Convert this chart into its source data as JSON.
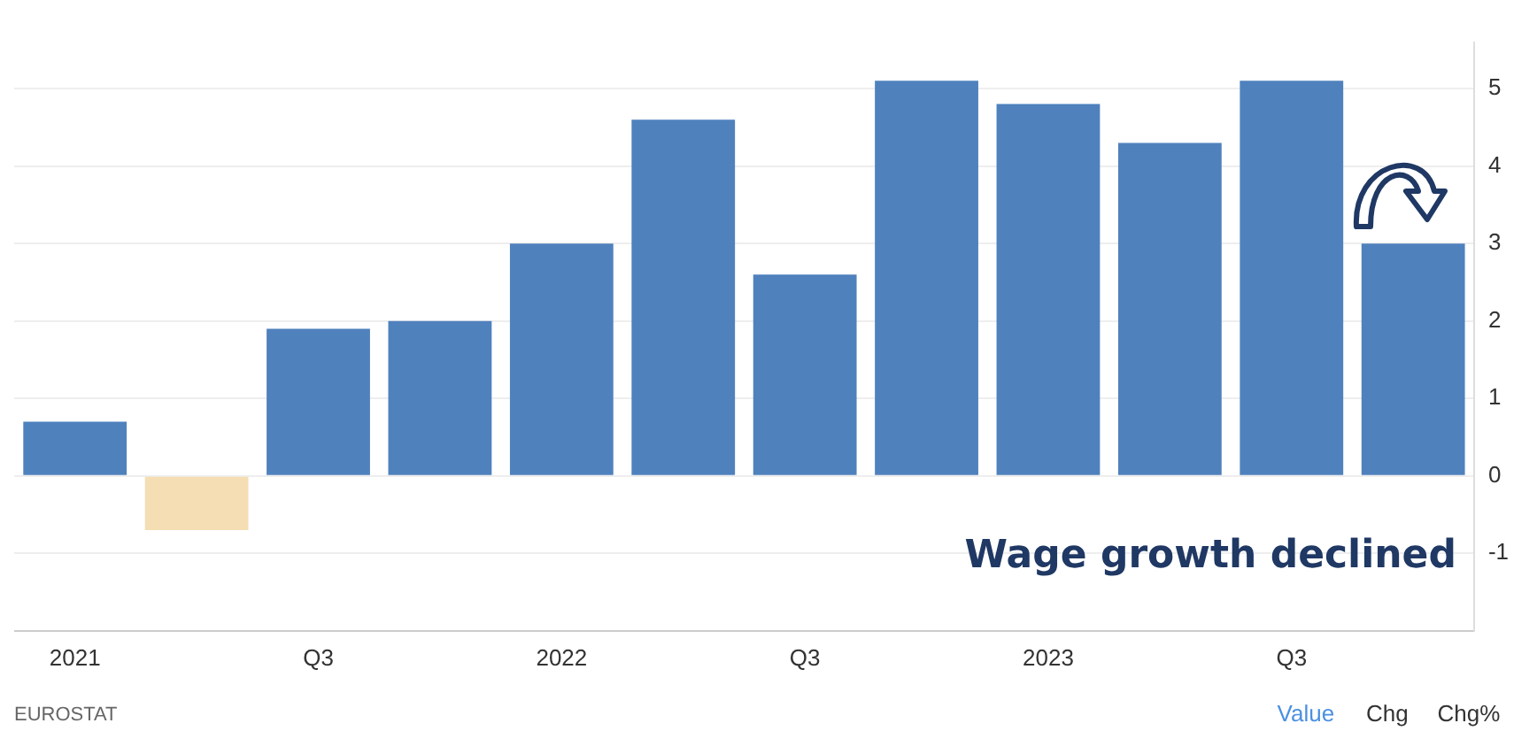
{
  "chart_data": {
    "type": "bar",
    "categories": [
      "2021",
      null,
      "Q3",
      null,
      "2022",
      null,
      "Q3",
      null,
      "2023",
      null,
      "Q3",
      null
    ],
    "values": [
      0.7,
      -0.7,
      1.9,
      2.0,
      3.0,
      4.6,
      2.6,
      5.1,
      4.8,
      4.3,
      5.1,
      3.0
    ],
    "colors": [
      "#4f81bd",
      "#f5deb3",
      "#4f81bd",
      "#4f81bd",
      "#4f81bd",
      "#4f81bd",
      "#4f81bd",
      "#4f81bd",
      "#4f81bd",
      "#4f81bd",
      "#4f81bd",
      "#4f81bd"
    ],
    "ylim": [
      -2,
      5.6
    ],
    "yticks": [
      -1,
      0,
      1,
      2,
      3,
      4,
      5
    ],
    "grid": "y",
    "annotations": [
      "Wage growth declined",
      "EUROSTAT",
      "Value",
      "Chg",
      "Chg%"
    ]
  }
}
